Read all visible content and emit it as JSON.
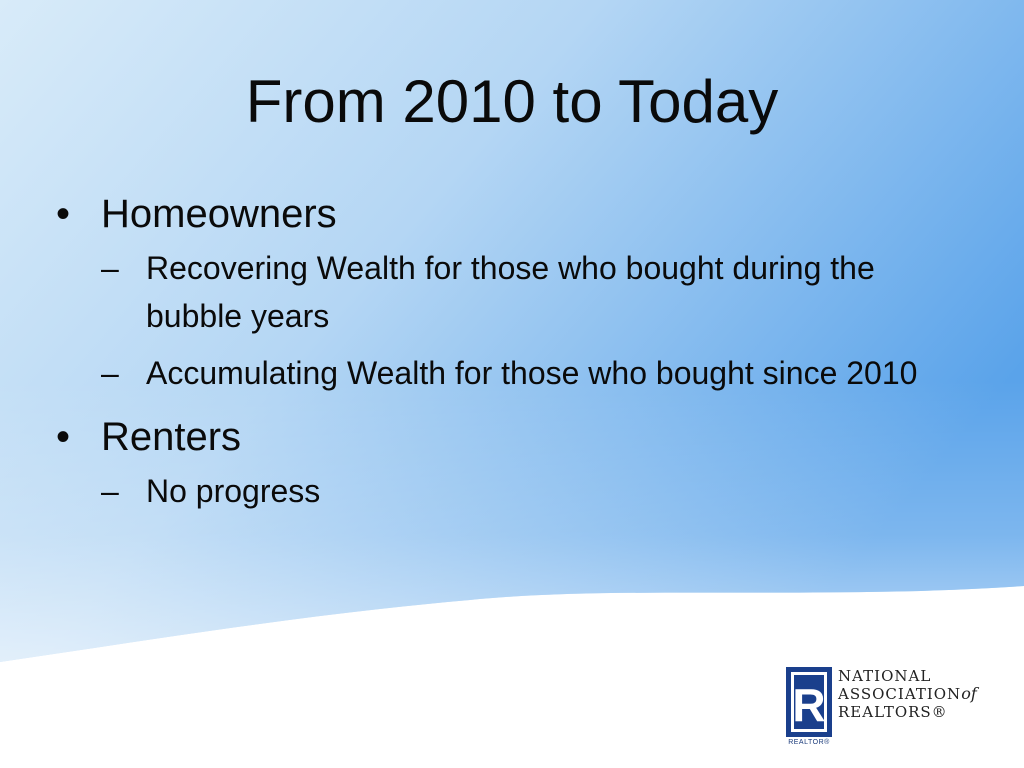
{
  "slide": {
    "title": "From 2010 to Today",
    "bullet_glyph": "•",
    "dash_glyph": "–",
    "bullets": [
      {
        "text": "Homeowners",
        "sub": [
          "Recovering Wealth for those who bought during the bubble years",
          "Accumulating Wealth for those who bought since 2010"
        ]
      },
      {
        "text": "Renters",
        "sub": [
          "No progress"
        ]
      }
    ]
  },
  "logo": {
    "line1": "NATIONAL",
    "line2": "ASSOCIATION",
    "line2_suffix": "of",
    "line3": "REALTORS®",
    "mark_letter": "R",
    "mark_caption": "REALTOR®",
    "colors": {
      "mark_blue": "#1a3f8c"
    }
  },
  "colors": {
    "background_top_right": "#5aa3ea",
    "background_light": "#e4f1fb",
    "text": "#0a0a0a"
  }
}
